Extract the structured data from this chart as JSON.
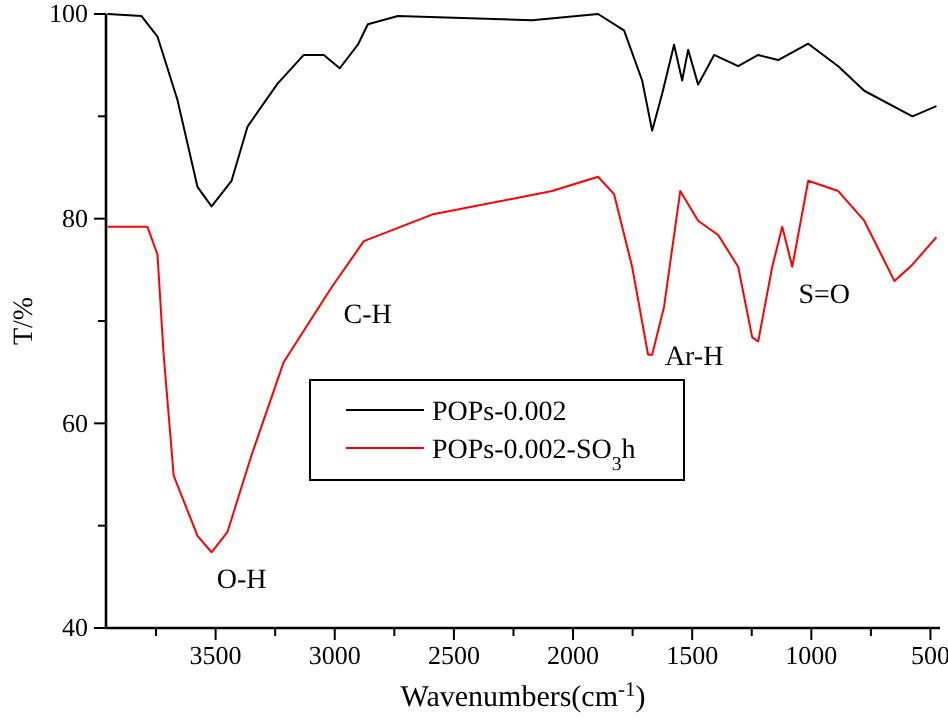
{
  "chart_data": {
    "type": "line",
    "xlabel": "Wavenumbers(cm$^{-1}$)",
    "ylabel": "T/%",
    "xlim": [
      3960,
      460
    ],
    "ylim": [
      40,
      100
    ],
    "xticks": [
      {
        "value": 3750,
        "label": null
      },
      3500,
      {
        "value": 3250,
        "label": null
      },
      3000,
      {
        "value": 2750,
        "label": null
      },
      2500,
      {
        "value": 2250,
        "label": null
      },
      2000,
      {
        "value": 1750,
        "label": null
      },
      1500,
      {
        "value": 1250,
        "label": null
      },
      1000,
      {
        "value": 750,
        "label": null
      },
      500
    ],
    "yticks": [
      40,
      {
        "value": 50,
        "label": null
      },
      60,
      {
        "value": 70,
        "label": null
      },
      80,
      {
        "value": 90,
        "label": null
      },
      100
    ],
    "grid": false,
    "legend": "center",
    "marker": "none",
    "line_style": "solid",
    "series": [
      {
        "name": "POPs-0.002",
        "color": "#000000",
        "x": [
          3954,
          3811,
          3744,
          3660,
          3576,
          3517,
          3433,
          3366,
          3240,
          3130,
          3046,
          2979,
          2903,
          2861,
          2735,
          2172,
          1895,
          1786,
          1710,
          1668,
          1626,
          1576,
          1542,
          1517,
          1475,
          1408,
          1307,
          1223,
          1139,
          1013,
          887,
          778,
          576,
          475
        ],
        "values": [
          100,
          99.8,
          97.8,
          91.6,
          83.1,
          81.2,
          83.7,
          89,
          93.2,
          96,
          96,
          94.7,
          97,
          99,
          99.8,
          99.4,
          100,
          98.4,
          93.5,
          88.6,
          92.2,
          97,
          93.5,
          96.5,
          93.1,
          96,
          94.9,
          96,
          95.5,
          97.1,
          94.9,
          92.5,
          90,
          91
        ]
      },
      {
        "name": "POPs-0.002-SO$_{3}$h",
        "color": "#ff0000",
        "x": [
          3954,
          3786,
          3744,
          3718,
          3676,
          3576,
          3517,
          3450,
          3349,
          3214,
          3013,
          2878,
          2592,
          2088,
          1895,
          1828,
          1752,
          1685,
          1668,
          1618,
          1550,
          1475,
          1391,
          1307,
          1248,
          1223,
          1164,
          1122,
          1080,
          1013,
          887,
          778,
          651,
          576,
          475
        ],
        "values": [
          79.2,
          79.2,
          76.5,
          66.7,
          54.9,
          49,
          47.4,
          49.4,
          56.9,
          66,
          73.3,
          77.8,
          80.4,
          82.7,
          84.1,
          82.4,
          75.3,
          66.7,
          66.7,
          71.4,
          82.7,
          79.8,
          78.4,
          75.3,
          68.4,
          68,
          75.3,
          79.2,
          75.3,
          83.7,
          82.7,
          79.8,
          73.9,
          75.5,
          78.2
        ]
      }
    ],
    "annotations": [
      {
        "text": "O-H",
        "x": 3517,
        "y": 47.4
      },
      {
        "text": "C-H",
        "x": 3013,
        "y": 73.3
      },
      {
        "text": "Ar-H",
        "x": 1668,
        "y": 66.7
      },
      {
        "text": "S=O",
        "x": 1080,
        "y": 75.3
      }
    ]
  }
}
